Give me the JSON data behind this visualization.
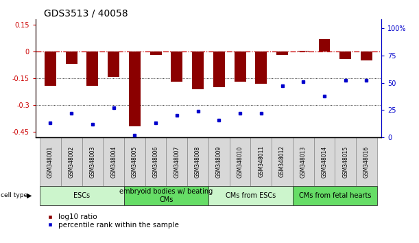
{
  "title": "GDS3513 / 40058",
  "samples": [
    "GSM348001",
    "GSM348002",
    "GSM348003",
    "GSM348004",
    "GSM348005",
    "GSM348006",
    "GSM348007",
    "GSM348008",
    "GSM348009",
    "GSM348010",
    "GSM348011",
    "GSM348012",
    "GSM348013",
    "GSM348014",
    "GSM348015",
    "GSM348016"
  ],
  "log10_ratio": [
    -0.19,
    -0.07,
    -0.19,
    -0.14,
    -0.42,
    -0.02,
    -0.17,
    -0.21,
    -0.2,
    -0.17,
    -0.18,
    -0.02,
    0.005,
    0.07,
    -0.04,
    -0.05
  ],
  "percentile_rank": [
    13,
    22,
    12,
    27,
    2,
    13,
    20,
    24,
    16,
    22,
    22,
    47,
    51,
    38,
    52,
    52
  ],
  "ylim_left": [
    -0.48,
    0.18
  ],
  "ylim_right": [
    0,
    108
  ],
  "yticks_left": [
    0.15,
    0.0,
    -0.15,
    -0.3,
    -0.45
  ],
  "yticks_right": [
    100,
    75,
    50,
    25,
    0
  ],
  "cell_type_groups": [
    {
      "label": "ESCs",
      "start": 0,
      "end": 3,
      "color": "#ccf5cc"
    },
    {
      "label": "embryoid bodies w/ beating\nCMs",
      "start": 4,
      "end": 7,
      "color": "#66dd66"
    },
    {
      "label": "CMs from ESCs",
      "start": 8,
      "end": 11,
      "color": "#ccf5cc"
    },
    {
      "label": "CMs from fetal hearts",
      "start": 12,
      "end": 15,
      "color": "#66dd66"
    }
  ],
  "bar_color": "#8B0000",
  "dot_color": "#0000CC",
  "bg_color": "#ffffff",
  "title_fontsize": 10,
  "tick_fontsize": 7,
  "sample_fontsize": 5.5,
  "group_fontsize": 7,
  "legend_fontsize": 7.5
}
